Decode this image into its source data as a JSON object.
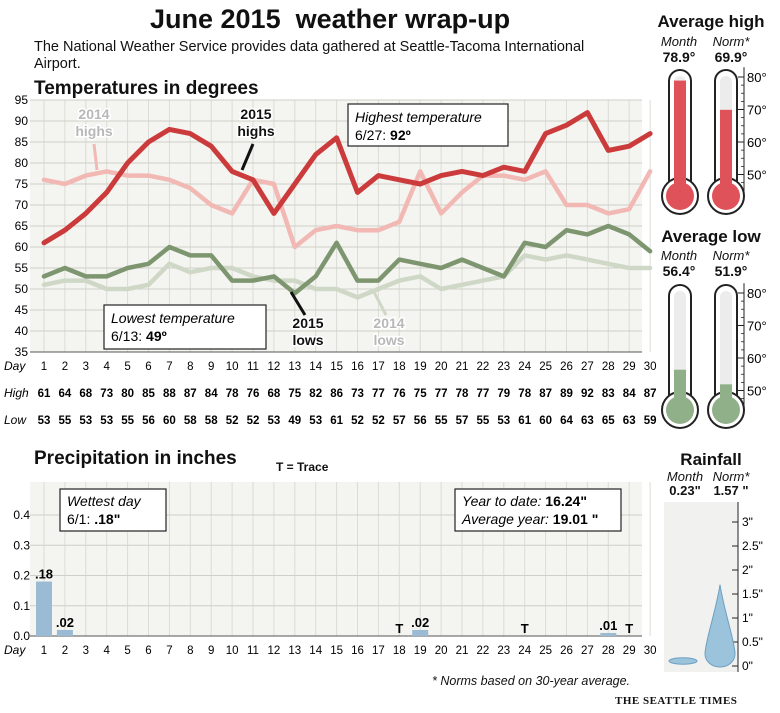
{
  "header": {
    "title": "June 2015  weather wrap-up",
    "subtitle": "The National Weather Service provides data gathered at Seattle-Tacoma International Airport."
  },
  "chart_data": [
    {
      "type": "line",
      "title": "Temperatures in degrees",
      "x": [
        1,
        2,
        3,
        4,
        5,
        6,
        7,
        8,
        9,
        10,
        11,
        12,
        13,
        14,
        15,
        16,
        17,
        18,
        19,
        20,
        21,
        22,
        23,
        24,
        25,
        26,
        27,
        28,
        29,
        30
      ],
      "xlabel": "Day",
      "ylim": [
        35,
        95
      ],
      "yticks": [
        35,
        40,
        45,
        50,
        55,
        60,
        65,
        70,
        75,
        80,
        85,
        90,
        95
      ],
      "grid": true,
      "series": [
        {
          "name": "2015 highs",
          "color": "#cc3b3b",
          "values": [
            61,
            64,
            68,
            73,
            80,
            85,
            88,
            87,
            84,
            78,
            76,
            68,
            75,
            82,
            86,
            73,
            77,
            76,
            75,
            77,
            78,
            77,
            79,
            78,
            87,
            89,
            92,
            83,
            84,
            87
          ]
        },
        {
          "name": "2014 highs",
          "color": "#f2b8b4",
          "values": [
            76,
            75,
            77,
            78,
            77,
            77,
            76,
            74,
            70,
            68,
            76,
            75,
            60,
            64,
            65,
            64,
            64,
            66,
            78,
            68,
            73,
            77,
            77,
            76,
            78,
            70,
            70,
            68,
            69,
            78
          ]
        },
        {
          "name": "2015 lows",
          "color": "#7e9670",
          "values": [
            53,
            55,
            53,
            53,
            55,
            56,
            60,
            58,
            58,
            52,
            52,
            53,
            49,
            53,
            61,
            52,
            52,
            57,
            56,
            55,
            57,
            55,
            53,
            61,
            60,
            64,
            63,
            65,
            63,
            59
          ]
        },
        {
          "name": "2014 lows",
          "color": "#cfd8c6",
          "values": [
            51,
            52,
            52,
            50,
            50,
            51,
            56,
            54,
            55,
            55,
            53,
            52,
            52,
            50,
            50,
            48,
            50,
            52,
            53,
            50,
            51,
            52,
            53,
            58,
            57,
            58,
            57,
            56,
            55,
            55
          ]
        }
      ],
      "table": {
        "day_label": "Day",
        "high_label": "High",
        "low_label": "Low",
        "highs": [
          61,
          64,
          68,
          73,
          80,
          85,
          88,
          87,
          84,
          78,
          76,
          68,
          75,
          82,
          86,
          73,
          77,
          76,
          75,
          77,
          78,
          77,
          79,
          78,
          87,
          89,
          92,
          83,
          84,
          87
        ],
        "lows": [
          53,
          55,
          53,
          53,
          55,
          56,
          60,
          58,
          58,
          52,
          52,
          53,
          49,
          53,
          61,
          52,
          52,
          57,
          56,
          55,
          57,
          55,
          53,
          61,
          60,
          64,
          63,
          65,
          63,
          59
        ]
      },
      "annotations": {
        "highest_label": "Highest temperature",
        "highest_date": "6/27:",
        "highest_value": "92º",
        "lowest_label": "Lowest temperature",
        "lowest_date": "6/13:",
        "lowest_value": "49º",
        "highs_2014_line1": "2014",
        "highs_2014_line2": "highs",
        "highs_2015_line1": "2015",
        "highs_2015_line2": "highs",
        "lows_2015_line1": "2015",
        "lows_2015_line2": "lows",
        "lows_2014_line1": "2014",
        "lows_2014_line2": "lows"
      }
    },
    {
      "type": "bar",
      "title": "Precipitation in inches",
      "subtitle": "T = Trace",
      "x": [
        1,
        2,
        3,
        4,
        5,
        6,
        7,
        8,
        9,
        10,
        11,
        12,
        13,
        14,
        15,
        16,
        17,
        18,
        19,
        20,
        21,
        22,
        23,
        24,
        25,
        26,
        27,
        28,
        29,
        30
      ],
      "xlabel": "Day",
      "values": [
        0.18,
        0.02,
        0,
        0,
        0,
        0,
        0,
        0,
        0,
        0,
        0,
        0,
        0,
        0,
        0,
        0,
        0,
        0,
        0.02,
        0,
        0,
        0,
        0,
        0,
        0,
        0,
        0,
        0.01,
        0,
        0
      ],
      "value_labels": {
        "1": ".18",
        "2": ".02",
        "18": "T",
        "19": ".02",
        "24": "T",
        "28": ".01",
        "29": "T"
      },
      "ylim": [
        0,
        0.4
      ],
      "yticks": [
        "0.0",
        "0.1",
        "0.2",
        "0.3",
        "0.4"
      ],
      "grid": true,
      "color": "#9bbbd4",
      "annotations": {
        "wettest_label": "Wettest day",
        "wettest_date": "6/1:",
        "wettest_value": ".18\"",
        "ytd_label": "Year to date:",
        "ytd_value": "16.24\"",
        "avg_label": "Average year:",
        "avg_value": "19.01 \""
      }
    }
  ],
  "avg_high": {
    "title": "Average high",
    "month_label": "Month",
    "norm_label": "Norm*",
    "month_value": "78.9°",
    "norm_value": "69.9°",
    "month_num": 78.9,
    "norm_num": 69.9,
    "ticks": [
      "80°",
      "70°",
      "60°",
      "50°"
    ],
    "color": "#e0525a"
  },
  "avg_low": {
    "title": "Average low",
    "month_label": "Month",
    "norm_label": "Norm*",
    "month_value": "56.4°",
    "norm_value": "51.9°",
    "month_num": 56.4,
    "norm_num": 51.9,
    "ticks": [
      "80°",
      "70°",
      "60°",
      "50°"
    ],
    "color": "#8fb088"
  },
  "rainfall": {
    "title": "Rainfall",
    "month_label": "Month",
    "norm_label": "Norm*",
    "month_value": "0.23\"",
    "norm_value": "1.57 \"",
    "month_num": 0.23,
    "norm_num": 1.57,
    "ticks": [
      "3\"",
      "2.5\"",
      "2\"",
      "1.5\"",
      "1\"",
      "0.5\"",
      "0\""
    ],
    "color": "#9cc3dc"
  },
  "footnote": "* Norms based on 30-year average.",
  "credit": "THE SEATTLE TIMES"
}
